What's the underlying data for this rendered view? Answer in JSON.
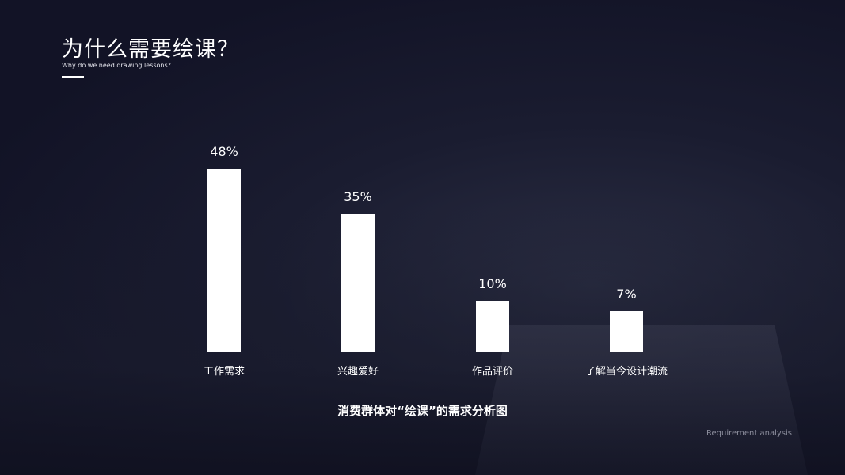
{
  "header": {
    "title": "为什么需要绘课？",
    "subtitle": "Why do we need drawing lessons?"
  },
  "chart_data": {
    "type": "bar",
    "title": "消费群体对“绘课”的需求分析图",
    "categories": [
      "工作需求",
      "兴趣爱好",
      "作品评价",
      "了解当今设计潮流"
    ],
    "values": [
      48,
      35,
      10,
      7
    ],
    "value_labels": [
      "48%",
      "35%",
      "10%",
      "7%"
    ],
    "unit": "%",
    "grid": false,
    "bar_color": "#ffffff"
  },
  "footer": {
    "text": "Requirement analysis"
  }
}
